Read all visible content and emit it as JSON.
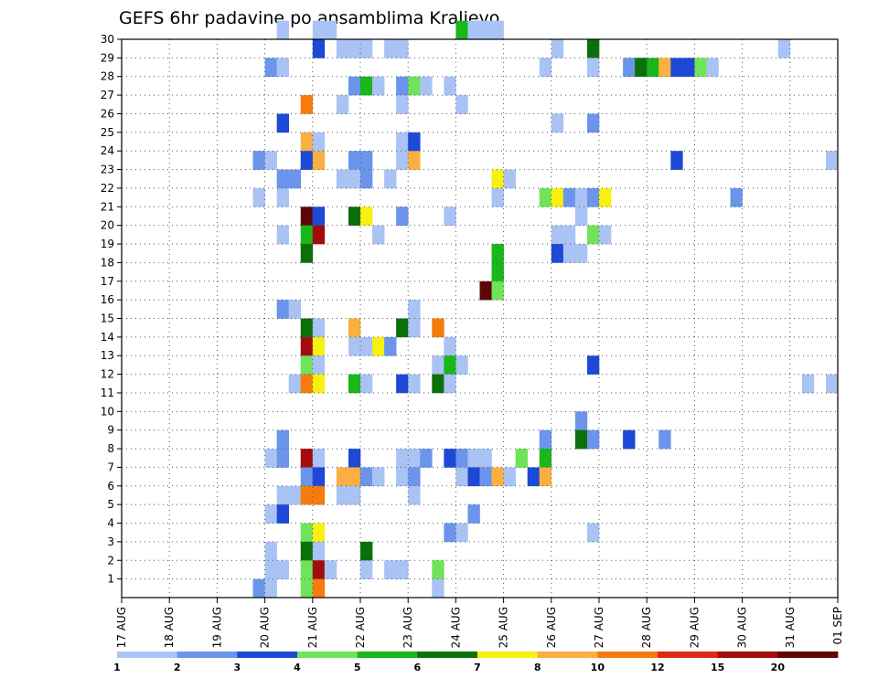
{
  "chart_data": {
    "type": "heatmap",
    "title": "GEFS 6hr padavine po ansamblima Kraljevo",
    "y_ticks": [
      "1",
      "2",
      "3",
      "4",
      "5",
      "6",
      "7",
      "8",
      "9",
      "10",
      "11",
      "12",
      "13",
      "14",
      "15",
      "16",
      "17",
      "18",
      "19",
      "20",
      "21",
      "22",
      "23",
      "24",
      "25",
      "26",
      "27",
      "28",
      "29",
      "30"
    ],
    "x_ticks": [
      "17 AUG",
      "18 AUG",
      "19 AUG",
      "20 AUG",
      "21 AUG",
      "22 AUG",
      "23 AUG",
      "24 AUG",
      "25 AUG",
      "26 AUG",
      "27 AUG",
      "28 AUG",
      "29 AUG",
      "30 AUG",
      "31 AUG",
      "01 SEP"
    ],
    "x_range": [
      "17 AUG",
      "01 SEP"
    ],
    "y_range": [
      0,
      30
    ],
    "grid": true,
    "legend": {
      "position": "bottom",
      "labels": [
        "1",
        "2",
        "3",
        "4",
        "5",
        "6",
        "7",
        "8",
        "10",
        "12",
        "15",
        "20"
      ],
      "colors": [
        "#a9c3f5",
        "#6b95ea",
        "#1e49d6",
        "#6fe35a",
        "#19b71a",
        "#0b6f0b",
        "#f7f010",
        "#f9b040",
        "#f57c0c",
        "#dc2a14",
        "#a40c0c",
        "#5e0505"
      ]
    },
    "cells": [
      {
        "m": 30,
        "d": "20 AUG",
        "h": 6,
        "c": 0
      },
      {
        "m": 30,
        "d": "21 AUG",
        "h": 0,
        "c": 0
      },
      {
        "m": 30,
        "d": "21 AUG",
        "h": 6,
        "c": 0
      },
      {
        "m": 30,
        "d": "24 AUG",
        "h": 0,
        "c": 4
      },
      {
        "m": 30,
        "d": "24 AUG",
        "h": 6,
        "c": 0
      },
      {
        "m": 30,
        "d": "24 AUG",
        "h": 12,
        "c": 0
      },
      {
        "m": 30,
        "d": "24 AUG",
        "h": 18,
        "c": 0
      },
      {
        "m": 29,
        "d": "21 AUG",
        "h": 0,
        "c": 2
      },
      {
        "m": 29,
        "d": "21 AUG",
        "h": 12,
        "c": 0
      },
      {
        "m": 29,
        "d": "21 AUG",
        "h": 18,
        "c": 0
      },
      {
        "m": 29,
        "d": "22 AUG",
        "h": 0,
        "c": 0
      },
      {
        "m": 29,
        "d": "22 AUG",
        "h": 12,
        "c": 0
      },
      {
        "m": 29,
        "d": "22 AUG",
        "h": 18,
        "c": 0
      },
      {
        "m": 29,
        "d": "26 AUG",
        "h": 0,
        "c": 0
      },
      {
        "m": 29,
        "d": "26 AUG",
        "h": 18,
        "c": 5
      },
      {
        "m": 29,
        "d": "30 AUG",
        "h": 18,
        "c": 0
      },
      {
        "m": 28,
        "d": "20 AUG",
        "h": 0,
        "c": 1
      },
      {
        "m": 28,
        "d": "20 AUG",
        "h": 6,
        "c": 0
      },
      {
        "m": 28,
        "d": "25 AUG",
        "h": 18,
        "c": 0
      },
      {
        "m": 28,
        "d": "26 AUG",
        "h": 18,
        "c": 0
      },
      {
        "m": 28,
        "d": "27 AUG",
        "h": 12,
        "c": 1
      },
      {
        "m": 28,
        "d": "27 AUG",
        "h": 18,
        "c": 5
      },
      {
        "m": 28,
        "d": "28 AUG",
        "h": 0,
        "c": 4
      },
      {
        "m": 28,
        "d": "28 AUG",
        "h": 6,
        "c": 7
      },
      {
        "m": 28,
        "d": "28 AUG",
        "h": 12,
        "c": 2
      },
      {
        "m": 28,
        "d": "28 AUG",
        "h": 18,
        "c": 2
      },
      {
        "m": 28,
        "d": "29 AUG",
        "h": 0,
        "c": 3
      },
      {
        "m": 28,
        "d": "29 AUG",
        "h": 6,
        "c": 0
      },
      {
        "m": 27,
        "d": "21 AUG",
        "h": 18,
        "c": 1
      },
      {
        "m": 27,
        "d": "22 AUG",
        "h": 0,
        "c": 4
      },
      {
        "m": 27,
        "d": "22 AUG",
        "h": 6,
        "c": 0
      },
      {
        "m": 27,
        "d": "22 AUG",
        "h": 18,
        "c": 1
      },
      {
        "m": 27,
        "d": "23 AUG",
        "h": 0,
        "c": 3
      },
      {
        "m": 27,
        "d": "23 AUG",
        "h": 6,
        "c": 0
      },
      {
        "m": 27,
        "d": "23 AUG",
        "h": 18,
        "c": 0
      },
      {
        "m": 26,
        "d": "20 AUG",
        "h": 18,
        "c": 8
      },
      {
        "m": 26,
        "d": "21 AUG",
        "h": 12,
        "c": 0
      },
      {
        "m": 26,
        "d": "22 AUG",
        "h": 18,
        "c": 0
      },
      {
        "m": 26,
        "d": "24 AUG",
        "h": 0,
        "c": 0
      },
      {
        "m": 25,
        "d": "20 AUG",
        "h": 6,
        "c": 2
      },
      {
        "m": 25,
        "d": "26 AUG",
        "h": 0,
        "c": 0
      },
      {
        "m": 25,
        "d": "26 AUG",
        "h": 18,
        "c": 1
      },
      {
        "m": 24,
        "d": "20 AUG",
        "h": 18,
        "c": 7
      },
      {
        "m": 24,
        "d": "21 AUG",
        "h": 0,
        "c": 0
      },
      {
        "m": 24,
        "d": "22 AUG",
        "h": 18,
        "c": 0
      },
      {
        "m": 24,
        "d": "23 AUG",
        "h": 0,
        "c": 2
      },
      {
        "m": 23,
        "d": "19 AUG",
        "h": 18,
        "c": 1
      },
      {
        "m": 23,
        "d": "20 AUG",
        "h": 0,
        "c": 0
      },
      {
        "m": 23,
        "d": "20 AUG",
        "h": 18,
        "c": 2
      },
      {
        "m": 23,
        "d": "21 AUG",
        "h": 0,
        "c": 7
      },
      {
        "m": 23,
        "d": "21 AUG",
        "h": 18,
        "c": 1
      },
      {
        "m": 23,
        "d": "22 AUG",
        "h": 0,
        "c": 1
      },
      {
        "m": 23,
        "d": "22 AUG",
        "h": 18,
        "c": 0
      },
      {
        "m": 23,
        "d": "23 AUG",
        "h": 0,
        "c": 7
      },
      {
        "m": 23,
        "d": "28 AUG",
        "h": 12,
        "c": 2
      },
      {
        "m": 23,
        "d": "31 AUG",
        "h": 18,
        "c": 0
      },
      {
        "m": 22,
        "d": "20 AUG",
        "h": 6,
        "c": 1
      },
      {
        "m": 22,
        "d": "20 AUG",
        "h": 12,
        "c": 1
      },
      {
        "m": 22,
        "d": "21 AUG",
        "h": 12,
        "c": 0
      },
      {
        "m": 22,
        "d": "21 AUG",
        "h": 18,
        "c": 0
      },
      {
        "m": 22,
        "d": "22 AUG",
        "h": 0,
        "c": 1
      },
      {
        "m": 22,
        "d": "22 AUG",
        "h": 12,
        "c": 0
      },
      {
        "m": 22,
        "d": "24 AUG",
        "h": 18,
        "c": 6
      },
      {
        "m": 22,
        "d": "25 AUG",
        "h": 0,
        "c": 0
      },
      {
        "m": 21,
        "d": "19 AUG",
        "h": 18,
        "c": 0
      },
      {
        "m": 21,
        "d": "20 AUG",
        "h": 6,
        "c": 0
      },
      {
        "m": 21,
        "d": "24 AUG",
        "h": 18,
        "c": 0
      },
      {
        "m": 21,
        "d": "25 AUG",
        "h": 18,
        "c": 3
      },
      {
        "m": 21,
        "d": "26 AUG",
        "h": 0,
        "c": 6
      },
      {
        "m": 21,
        "d": "26 AUG",
        "h": 6,
        "c": 1
      },
      {
        "m": 21,
        "d": "26 AUG",
        "h": 12,
        "c": 0
      },
      {
        "m": 21,
        "d": "26 AUG",
        "h": 18,
        "c": 1
      },
      {
        "m": 21,
        "d": "27 AUG",
        "h": 0,
        "c": 6
      },
      {
        "m": 21,
        "d": "29 AUG",
        "h": 18,
        "c": 1
      },
      {
        "m": 20,
        "d": "20 AUG",
        "h": 18,
        "c": 11
      },
      {
        "m": 20,
        "d": "21 AUG",
        "h": 0,
        "c": 2
      },
      {
        "m": 20,
        "d": "21 AUG",
        "h": 18,
        "c": 5
      },
      {
        "m": 20,
        "d": "22 AUG",
        "h": 0,
        "c": 6
      },
      {
        "m": 20,
        "d": "22 AUG",
        "h": 18,
        "c": 1
      },
      {
        "m": 20,
        "d": "23 AUG",
        "h": 18,
        "c": 0
      },
      {
        "m": 20,
        "d": "26 AUG",
        "h": 12,
        "c": 0
      },
      {
        "m": 19,
        "d": "20 AUG",
        "h": 6,
        "c": 0
      },
      {
        "m": 19,
        "d": "20 AUG",
        "h": 18,
        "c": 4
      },
      {
        "m": 19,
        "d": "21 AUG",
        "h": 0,
        "c": 10
      },
      {
        "m": 19,
        "d": "22 AUG",
        "h": 6,
        "c": 0
      },
      {
        "m": 19,
        "d": "26 AUG",
        "h": 0,
        "c": 0
      },
      {
        "m": 19,
        "d": "26 AUG",
        "h": 6,
        "c": 0
      },
      {
        "m": 19,
        "d": "26 AUG",
        "h": 18,
        "c": 3
      },
      {
        "m": 19,
        "d": "27 AUG",
        "h": 0,
        "c": 0
      },
      {
        "m": 18,
        "d": "20 AUG",
        "h": 18,
        "c": 5
      },
      {
        "m": 18,
        "d": "24 AUG",
        "h": 18,
        "c": 4
      },
      {
        "m": 18,
        "d": "26 AUG",
        "h": 0,
        "c": 2
      },
      {
        "m": 18,
        "d": "26 AUG",
        "h": 6,
        "c": 0
      },
      {
        "m": 18,
        "d": "26 AUG",
        "h": 12,
        "c": 0
      },
      {
        "m": 17,
        "d": "24 AUG",
        "h": 18,
        "c": 4
      },
      {
        "m": 16,
        "d": "24 AUG",
        "h": 12,
        "c": 11
      },
      {
        "m": 16,
        "d": "24 AUG",
        "h": 18,
        "c": 3
      },
      {
        "m": 15,
        "d": "20 AUG",
        "h": 6,
        "c": 1
      },
      {
        "m": 15,
        "d": "20 AUG",
        "h": 12,
        "c": 0
      },
      {
        "m": 15,
        "d": "23 AUG",
        "h": 0,
        "c": 0
      },
      {
        "m": 14,
        "d": "20 AUG",
        "h": 18,
        "c": 5
      },
      {
        "m": 14,
        "d": "21 AUG",
        "h": 0,
        "c": 0
      },
      {
        "m": 14,
        "d": "21 AUG",
        "h": 18,
        "c": 7
      },
      {
        "m": 14,
        "d": "22 AUG",
        "h": 18,
        "c": 5
      },
      {
        "m": 14,
        "d": "23 AUG",
        "h": 0,
        "c": 0
      },
      {
        "m": 14,
        "d": "23 AUG",
        "h": 12,
        "c": 8
      },
      {
        "m": 13,
        "d": "20 AUG",
        "h": 18,
        "c": 10
      },
      {
        "m": 13,
        "d": "21 AUG",
        "h": 0,
        "c": 6
      },
      {
        "m": 13,
        "d": "21 AUG",
        "h": 18,
        "c": 0
      },
      {
        "m": 13,
        "d": "22 AUG",
        "h": 0,
        "c": 0
      },
      {
        "m": 13,
        "d": "22 AUG",
        "h": 6,
        "c": 6
      },
      {
        "m": 13,
        "d": "22 AUG",
        "h": 12,
        "c": 1
      },
      {
        "m": 13,
        "d": "23 AUG",
        "h": 18,
        "c": 0
      },
      {
        "m": 12,
        "d": "20 AUG",
        "h": 18,
        "c": 3
      },
      {
        "m": 12,
        "d": "21 AUG",
        "h": 0,
        "c": 0
      },
      {
        "m": 12,
        "d": "23 AUG",
        "h": 12,
        "c": 0
      },
      {
        "m": 12,
        "d": "23 AUG",
        "h": 18,
        "c": 4
      },
      {
        "m": 12,
        "d": "24 AUG",
        "h": 0,
        "c": 0
      },
      {
        "m": 12,
        "d": "26 AUG",
        "h": 18,
        "c": 2
      },
      {
        "m": 11,
        "d": "20 AUG",
        "h": 12,
        "c": 0
      },
      {
        "m": 11,
        "d": "20 AUG",
        "h": 18,
        "c": 8
      },
      {
        "m": 11,
        "d": "21 AUG",
        "h": 0,
        "c": 6
      },
      {
        "m": 11,
        "d": "21 AUG",
        "h": 18,
        "c": 4
      },
      {
        "m": 11,
        "d": "22 AUG",
        "h": 0,
        "c": 0
      },
      {
        "m": 11,
        "d": "22 AUG",
        "h": 18,
        "c": 2
      },
      {
        "m": 11,
        "d": "23 AUG",
        "h": 0,
        "c": 0
      },
      {
        "m": 11,
        "d": "23 AUG",
        "h": 12,
        "c": 5
      },
      {
        "m": 11,
        "d": "23 AUG",
        "h": 18,
        "c": 0
      },
      {
        "m": 11,
        "d": "31 AUG",
        "h": 6,
        "c": 0
      },
      {
        "m": 11,
        "d": "31 AUG",
        "h": 18,
        "c": 0
      },
      {
        "m": 9,
        "d": "26 AUG",
        "h": 12,
        "c": 1
      },
      {
        "m": 8,
        "d": "20 AUG",
        "h": 6,
        "c": 1
      },
      {
        "m": 8,
        "d": "25 AUG",
        "h": 18,
        "c": 1
      },
      {
        "m": 8,
        "d": "26 AUG",
        "h": 12,
        "c": 5
      },
      {
        "m": 8,
        "d": "26 AUG",
        "h": 18,
        "c": 1
      },
      {
        "m": 8,
        "d": "27 AUG",
        "h": 12,
        "c": 2
      },
      {
        "m": 8,
        "d": "28 AUG",
        "h": 6,
        "c": 1
      },
      {
        "m": 7,
        "d": "20 AUG",
        "h": 0,
        "c": 0
      },
      {
        "m": 7,
        "d": "20 AUG",
        "h": 6,
        "c": 1
      },
      {
        "m": 7,
        "d": "20 AUG",
        "h": 18,
        "c": 10
      },
      {
        "m": 7,
        "d": "21 AUG",
        "h": 0,
        "c": 0
      },
      {
        "m": 7,
        "d": "21 AUG",
        "h": 18,
        "c": 2
      },
      {
        "m": 7,
        "d": "22 AUG",
        "h": 18,
        "c": 0
      },
      {
        "m": 7,
        "d": "23 AUG",
        "h": 0,
        "c": 0
      },
      {
        "m": 7,
        "d": "23 AUG",
        "h": 6,
        "c": 1
      },
      {
        "m": 7,
        "d": "23 AUG",
        "h": 18,
        "c": 2
      },
      {
        "m": 7,
        "d": "24 AUG",
        "h": 0,
        "c": 1
      },
      {
        "m": 7,
        "d": "24 AUG",
        "h": 6,
        "c": 0
      },
      {
        "m": 7,
        "d": "24 AUG",
        "h": 12,
        "c": 0
      },
      {
        "m": 7,
        "d": "25 AUG",
        "h": 6,
        "c": 3
      },
      {
        "m": 7,
        "d": "25 AUG",
        "h": 18,
        "c": 4
      },
      {
        "m": 6,
        "d": "20 AUG",
        "h": 18,
        "c": 1
      },
      {
        "m": 6,
        "d": "21 AUG",
        "h": 0,
        "c": 2
      },
      {
        "m": 6,
        "d": "21 AUG",
        "h": 12,
        "c": 7
      },
      {
        "m": 6,
        "d": "21 AUG",
        "h": 18,
        "c": 7
      },
      {
        "m": 6,
        "d": "22 AUG",
        "h": 0,
        "c": 1
      },
      {
        "m": 6,
        "d": "22 AUG",
        "h": 6,
        "c": 0
      },
      {
        "m": 6,
        "d": "22 AUG",
        "h": 18,
        "c": 0
      },
      {
        "m": 6,
        "d": "23 AUG",
        "h": 0,
        "c": 1
      },
      {
        "m": 6,
        "d": "24 AUG",
        "h": 0,
        "c": 0
      },
      {
        "m": 6,
        "d": "24 AUG",
        "h": 6,
        "c": 2
      },
      {
        "m": 6,
        "d": "24 AUG",
        "h": 12,
        "c": 1
      },
      {
        "m": 6,
        "d": "24 AUG",
        "h": 18,
        "c": 7
      },
      {
        "m": 6,
        "d": "25 AUG",
        "h": 0,
        "c": 0
      },
      {
        "m": 6,
        "d": "25 AUG",
        "h": 12,
        "c": 2
      },
      {
        "m": 6,
        "d": "25 AUG",
        "h": 18,
        "c": 7
      },
      {
        "m": 5,
        "d": "20 AUG",
        "h": 6,
        "c": 0
      },
      {
        "m": 5,
        "d": "20 AUG",
        "h": 12,
        "c": 0
      },
      {
        "m": 5,
        "d": "20 AUG",
        "h": 18,
        "c": 8
      },
      {
        "m": 5,
        "d": "21 AUG",
        "h": 0,
        "c": 8
      },
      {
        "m": 5,
        "d": "21 AUG",
        "h": 12,
        "c": 0
      },
      {
        "m": 5,
        "d": "21 AUG",
        "h": 18,
        "c": 0
      },
      {
        "m": 5,
        "d": "23 AUG",
        "h": 0,
        "c": 0
      },
      {
        "m": 4,
        "d": "20 AUG",
        "h": 0,
        "c": 0
      },
      {
        "m": 4,
        "d": "20 AUG",
        "h": 6,
        "c": 2
      },
      {
        "m": 4,
        "d": "24 AUG",
        "h": 6,
        "c": 1
      },
      {
        "m": 3,
        "d": "20 AUG",
        "h": 18,
        "c": 3
      },
      {
        "m": 3,
        "d": "21 AUG",
        "h": 0,
        "c": 6
      },
      {
        "m": 3,
        "d": "23 AUG",
        "h": 18,
        "c": 1
      },
      {
        "m": 3,
        "d": "24 AUG",
        "h": 0,
        "c": 0
      },
      {
        "m": 3,
        "d": "26 AUG",
        "h": 18,
        "c": 0
      },
      {
        "m": 2,
        "d": "20 AUG",
        "h": 0,
        "c": 0
      },
      {
        "m": 2,
        "d": "20 AUG",
        "h": 18,
        "c": 5
      },
      {
        "m": 2,
        "d": "21 AUG",
        "h": 0,
        "c": 0
      },
      {
        "m": 2,
        "d": "22 AUG",
        "h": 0,
        "c": 5
      },
      {
        "m": 1,
        "d": "20 AUG",
        "h": 0,
        "c": 0
      },
      {
        "m": 1,
        "d": "20 AUG",
        "h": 6,
        "c": 0
      },
      {
        "m": 1,
        "d": "20 AUG",
        "h": 18,
        "c": 3
      },
      {
        "m": 1,
        "d": "21 AUG",
        "h": 0,
        "c": 10
      },
      {
        "m": 1,
        "d": "21 AUG",
        "h": 6,
        "c": 0
      },
      {
        "m": 1,
        "d": "22 AUG",
        "h": 0,
        "c": 0
      },
      {
        "m": 1,
        "d": "22 AUG",
        "h": 12,
        "c": 0
      },
      {
        "m": 1,
        "d": "22 AUG",
        "h": 18,
        "c": 0
      },
      {
        "m": 1,
        "d": "23 AUG",
        "h": 12,
        "c": 3
      },
      {
        "m": 0,
        "d": "19 AUG",
        "h": 18,
        "c": 1
      },
      {
        "m": 0,
        "d": "20 AUG",
        "h": 0,
        "c": 0
      },
      {
        "m": 0,
        "d": "20 AUG",
        "h": 18,
        "c": 3
      },
      {
        "m": 0,
        "d": "21 AUG",
        "h": 0,
        "c": 8
      },
      {
        "m": 0,
        "d": "23 AUG",
        "h": 12,
        "c": 0
      }
    ]
  }
}
